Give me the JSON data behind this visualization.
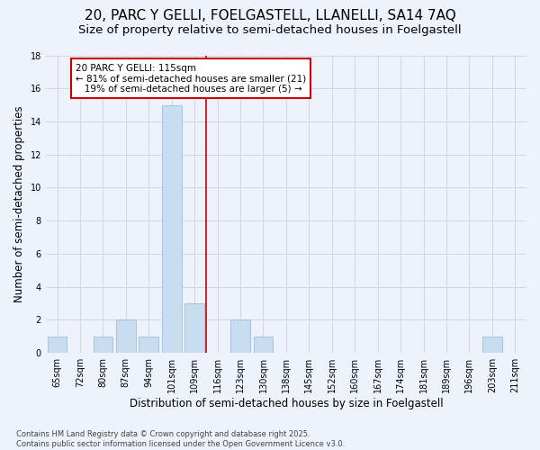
{
  "title_line1": "20, PARC Y GELLI, FOELGASTELL, LLANELLI, SA14 7AQ",
  "title_line2": "Size of property relative to semi-detached houses in Foelgastell",
  "xlabel": "Distribution of semi-detached houses by size in Foelgastell",
  "ylabel": "Number of semi-detached properties",
  "categories": [
    "65sqm",
    "72sqm",
    "80sqm",
    "87sqm",
    "94sqm",
    "101sqm",
    "109sqm",
    "116sqm",
    "123sqm",
    "130sqm",
    "138sqm",
    "145sqm",
    "152sqm",
    "160sqm",
    "167sqm",
    "174sqm",
    "181sqm",
    "189sqm",
    "196sqm",
    "203sqm",
    "211sqm"
  ],
  "values": [
    1,
    0,
    1,
    2,
    1,
    15,
    3,
    0,
    2,
    1,
    0,
    0,
    0,
    0,
    0,
    0,
    0,
    0,
    0,
    1,
    0
  ],
  "bar_color": "#c9ddf0",
  "bar_edge_color": "#a0bcdb",
  "grid_color": "#d0d8e8",
  "background_color": "#eef2fa",
  "vline_x_index": 6.5,
  "vline_color": "#cc0000",
  "annotation_text": "20 PARC Y GELLI: 115sqm\n← 81% of semi-detached houses are smaller (21)\n   19% of semi-detached houses are larger (5) →",
  "annotation_box_color": "#ffffff",
  "annotation_box_edge_color": "#cc0000",
  "ylim": [
    0,
    18
  ],
  "yticks": [
    0,
    2,
    4,
    6,
    8,
    10,
    12,
    14,
    16,
    18
  ],
  "footer_text": "Contains HM Land Registry data © Crown copyright and database right 2025.\nContains public sector information licensed under the Open Government Licence v3.0.",
  "title_fontsize": 11,
  "subtitle_fontsize": 9.5,
  "axis_label_fontsize": 8.5,
  "tick_fontsize": 7,
  "annotation_fontsize": 7.5,
  "footer_fontsize": 6
}
